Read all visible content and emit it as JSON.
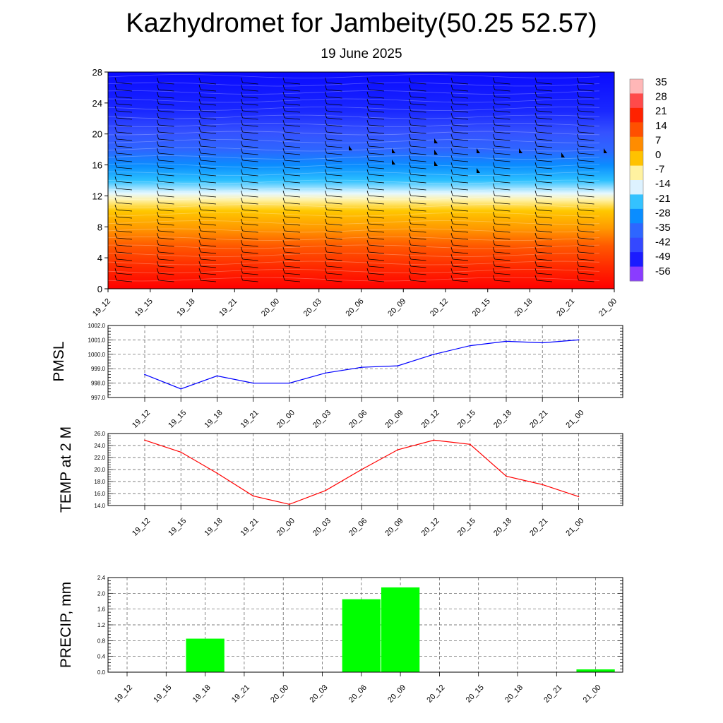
{
  "header": {
    "title": "Kazhydromet for Jambeity(50.25 52.57)",
    "subtitle": "19 June 2025"
  },
  "chart_data": [
    {
      "type": "heatmap",
      "name": "cross-section",
      "x_categories": [
        "19_12",
        "19_15",
        "19_18",
        "19_21",
        "20_00",
        "20_03",
        "20_06",
        "20_09",
        "20_12",
        "20_15",
        "20_18",
        "20_21",
        "21_00"
      ],
      "y_ticks": [
        0,
        4,
        8,
        12,
        16,
        20,
        24,
        28
      ],
      "ylim": [
        0,
        28
      ],
      "colorbar_labels": [
        "35",
        "28",
        "21",
        "14",
        "7",
        "0",
        "-7",
        "-14",
        "-21",
        "-28",
        "-35",
        "-42",
        "-49",
        "-56"
      ],
      "colormap": [
        "#ff0000",
        "#ff4a00",
        "#ff8c00",
        "#ffc300",
        "#fff08a",
        "#ffffff",
        "#a6e8ff",
        "#29bfff",
        "#0088ff",
        "#1e5cff",
        "#3347ff",
        "#1a1aff",
        "#1414ff",
        "#8a33ff"
      ],
      "notes": "wind barbs overlaid across the section"
    },
    {
      "type": "line",
      "name": "pmsl",
      "ylabel": "PMSL",
      "categories": [
        "19_12",
        "19_15",
        "19_18",
        "19_21",
        "20_00",
        "20_03",
        "20_06",
        "20_09",
        "20_12",
        "20_15",
        "20_18",
        "20_21",
        "21_00"
      ],
      "values": [
        998.6,
        997.6,
        998.5,
        998.0,
        998.0,
        998.7,
        999.1,
        999.2,
        1000.0,
        1000.6,
        1000.9,
        1000.8,
        1001.0
      ],
      "ylim": [
        997.0,
        1002.0
      ],
      "yticks": [
        "997.0",
        "998.0",
        "999.0",
        "1000.0",
        "1001.0",
        "1002.0"
      ],
      "color": "#0000ff",
      "grid": true
    },
    {
      "type": "line",
      "name": "temp2m",
      "ylabel": "TEMP at 2 M",
      "categories": [
        "19_12",
        "19_15",
        "19_18",
        "19_21",
        "20_00",
        "20_03",
        "20_06",
        "20_09",
        "20_12",
        "20_15",
        "20_18",
        "20_21",
        "21_00"
      ],
      "values": [
        24.9,
        22.9,
        19.4,
        15.6,
        14.2,
        16.5,
        20.0,
        23.3,
        24.9,
        24.2,
        18.9,
        17.5,
        15.5
      ],
      "ylim": [
        14.0,
        26.0
      ],
      "yticks": [
        "14.0",
        "16.0",
        "18.0",
        "20.0",
        "22.0",
        "24.0",
        "26.0"
      ],
      "color": "#ff0000",
      "grid": true
    },
    {
      "type": "bar",
      "name": "precip",
      "ylabel": "PRECIP, mm",
      "categories": [
        "19_12",
        "19_15",
        "19_18",
        "19_21",
        "20_00",
        "20_03",
        "20_06",
        "20_09",
        "20_12",
        "20_15",
        "20_18",
        "20_21",
        "21_00"
      ],
      "values": [
        0,
        0,
        0.85,
        0,
        0,
        0,
        1.85,
        2.15,
        0,
        0,
        0,
        0,
        0.07
      ],
      "ylim": [
        0,
        2.4
      ],
      "yticks": [
        "0.0",
        "0.4",
        "0.8",
        "1.2",
        "1.6",
        "2.0",
        "2.4"
      ],
      "color": "#00ff00",
      "grid": true
    }
  ]
}
